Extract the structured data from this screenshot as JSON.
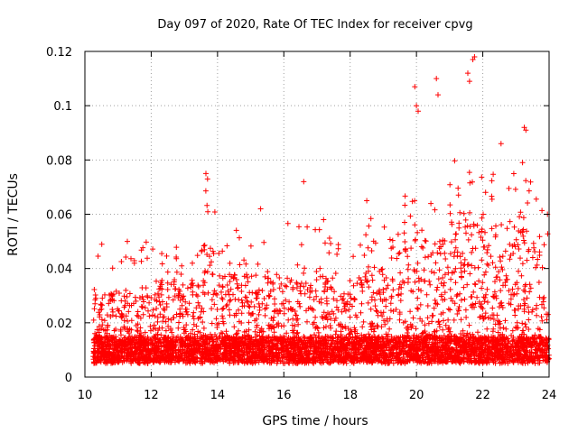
{
  "chart_data": {
    "type": "scatter",
    "title": "Day 097 of 2020, Rate Of TEC Index for receiver cpvg",
    "xlabel": "GPS time / hours",
    "ylabel": "ROTI / TECUs",
    "xlim": [
      10,
      24
    ],
    "ylim": [
      0,
      0.12
    ],
    "x_ticks": [
      10,
      12,
      14,
      16,
      18,
      20,
      22,
      24
    ],
    "y_ticks": [
      0,
      0.02,
      0.04,
      0.06,
      0.08,
      0.1,
      0.12
    ],
    "x_tick_labels": [
      "10",
      "12",
      "14",
      "16",
      "18",
      "20",
      "22",
      "24"
    ],
    "y_tick_labels": [
      "0",
      "0.02",
      "0.04",
      "0.06",
      "0.08",
      "0.1",
      "0.12"
    ],
    "grid": true,
    "marker": "+",
    "series": [
      {
        "name": "ROTI",
        "color": "#ff0000",
        "profile": {
          "x_start": 10.25,
          "x_end": 24.0,
          "baseline": 0.009,
          "notable_points": [
            {
              "x": 13.65,
              "y": 0.075
            },
            {
              "x": 13.7,
              "y": 0.073
            },
            {
              "x": 15.3,
              "y": 0.062
            },
            {
              "x": 16.6,
              "y": 0.072
            },
            {
              "x": 17.2,
              "y": 0.058
            },
            {
              "x": 18.5,
              "y": 0.065
            },
            {
              "x": 19.95,
              "y": 0.107
            },
            {
              "x": 20.0,
              "y": 0.1
            },
            {
              "x": 20.05,
              "y": 0.098
            },
            {
              "x": 20.6,
              "y": 0.11
            },
            {
              "x": 20.65,
              "y": 0.104
            },
            {
              "x": 21.55,
              "y": 0.112
            },
            {
              "x": 21.6,
              "y": 0.109
            },
            {
              "x": 21.7,
              "y": 0.117
            },
            {
              "x": 21.75,
              "y": 0.118
            },
            {
              "x": 22.55,
              "y": 0.086
            },
            {
              "x": 23.25,
              "y": 0.092
            },
            {
              "x": 23.3,
              "y": 0.091
            },
            {
              "x": 23.2,
              "y": 0.079
            },
            {
              "x": 23.95,
              "y": 0.06
            }
          ]
        }
      }
    ]
  }
}
